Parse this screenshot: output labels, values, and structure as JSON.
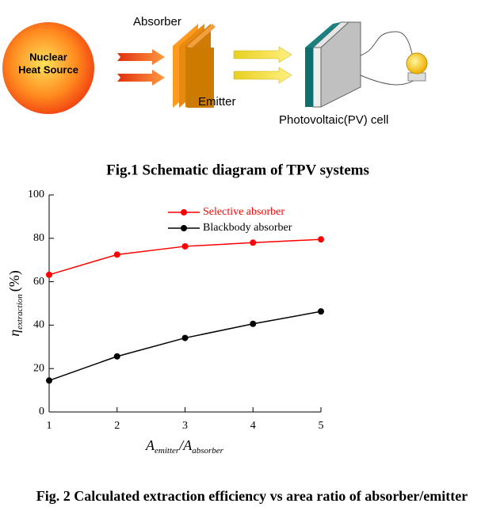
{
  "diagram": {
    "source_lines": [
      "Nuclear",
      "Heat Source"
    ],
    "absorber": "Absorber",
    "emitter": "Emitter",
    "pv_cell": "Photovoltaic(PV) cell"
  },
  "fig1_caption": "Fig.1 Schematic diagram of TPV systems",
  "chart_data": {
    "type": "line",
    "x": [
      1,
      2,
      3,
      4,
      5
    ],
    "series": [
      {
        "name": "Selective absorber",
        "color": "#ff0000",
        "values": [
          63.2,
          72.5,
          76.3,
          78.0,
          79.5
        ]
      },
      {
        "name": "Blackbody absorber",
        "color": "#000000",
        "values": [
          14.5,
          25.6,
          34.1,
          40.6,
          46.3
        ]
      }
    ],
    "xlim": [
      1,
      5
    ],
    "xticks": [
      1,
      2,
      3,
      4,
      5
    ],
    "ylim": [
      0,
      100
    ],
    "yticks": [
      0,
      20,
      40,
      60,
      80,
      100
    ],
    "ylabel": {
      "symbol": "η",
      "subscript": "extraction",
      "unit": "(%)"
    },
    "xlabel": {
      "a1": "A",
      "s1": "emitter",
      "sep": "/",
      "a2": "A",
      "s2": "absorber"
    },
    "legend": "upper left"
  },
  "fig2_caption": "Fig. 2 Calculated extraction efficiency vs area ratio of absorber/emitter"
}
